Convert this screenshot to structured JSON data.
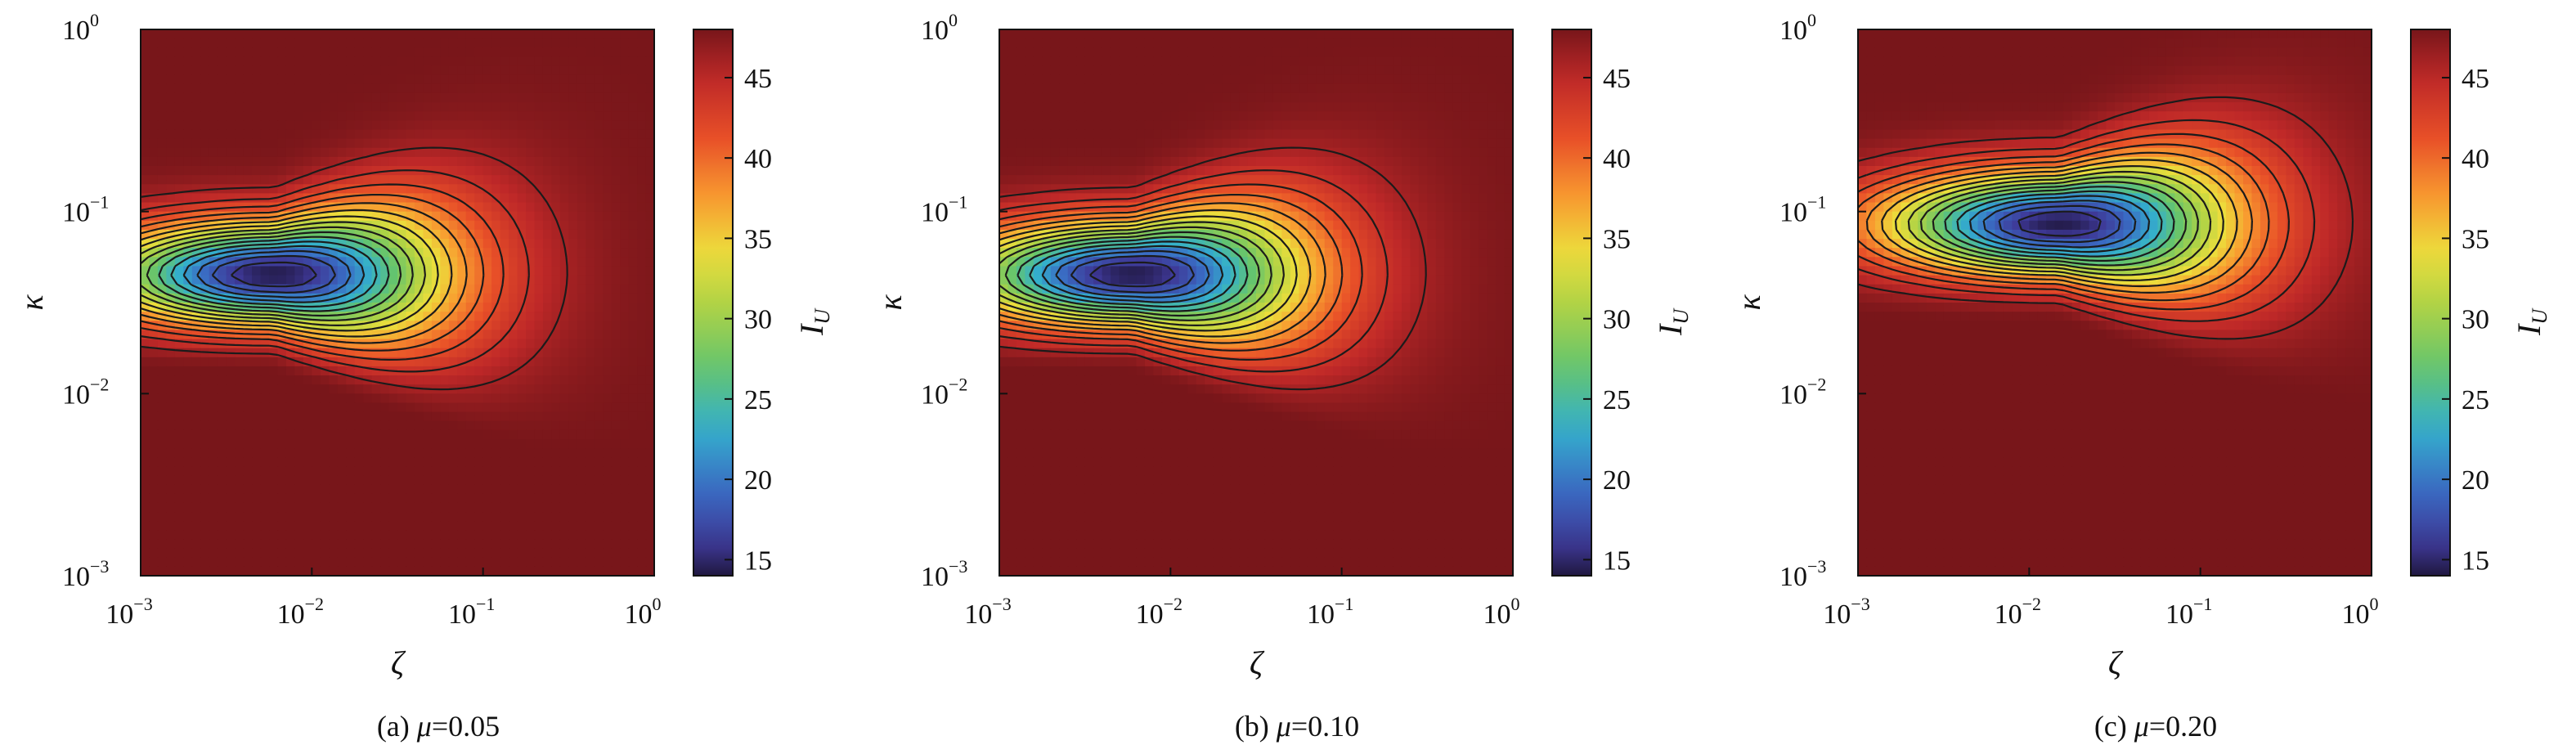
{
  "figure": {
    "panels": [
      {
        "caption_prefix": "(a) ",
        "caption_symbol": "μ",
        "caption_value": "=0.05"
      },
      {
        "caption_prefix": "(b) ",
        "caption_symbol": "μ",
        "caption_value": "=0.10"
      },
      {
        "caption_prefix": "(c) ",
        "caption_symbol": "μ",
        "caption_value": "=0.20"
      }
    ]
  },
  "chart_data": [
    {
      "type": "heatmap",
      "mu": 0.05,
      "xlabel": "ζ",
      "ylabel": "κ",
      "xscale": "log",
      "yscale": "log",
      "xlim": [
        0.001,
        1
      ],
      "ylim": [
        0.001,
        1
      ],
      "x_ticks": [
        {
          "base": "10",
          "exp": "−3"
        },
        {
          "base": "10",
          "exp": "−2"
        },
        {
          "base": "10",
          "exp": "−1"
        },
        {
          "base": "10",
          "exp": "0"
        }
      ],
      "y_ticks": [
        {
          "base": "10",
          "exp": "−3"
        },
        {
          "base": "10",
          "exp": "−2"
        },
        {
          "base": "10",
          "exp": "−1"
        },
        {
          "base": "10",
          "exp": "0"
        }
      ],
      "colorbar": {
        "label": "I",
        "label_sub": "U",
        "range": [
          14,
          48
        ],
        "ticks": [
          "15",
          "20",
          "25",
          "30",
          "35",
          "40",
          "45"
        ],
        "colormap": "spectral"
      },
      "minimum": {
        "zeta": 0.006,
        "kappa": 0.045,
        "value": 14
      },
      "contour_levels": "every 2 units",
      "grid": false
    },
    {
      "type": "heatmap",
      "mu": 0.1,
      "xlabel": "ζ",
      "ylabel": "κ",
      "xscale": "log",
      "yscale": "log",
      "xlim": [
        0.001,
        1
      ],
      "ylim": [
        0.001,
        1
      ],
      "x_ticks": [
        {
          "base": "10",
          "exp": "−3"
        },
        {
          "base": "10",
          "exp": "−2"
        },
        {
          "base": "10",
          "exp": "−1"
        },
        {
          "base": "10",
          "exp": "0"
        }
      ],
      "y_ticks": [
        {
          "base": "10",
          "exp": "−3"
        },
        {
          "base": "10",
          "exp": "−2"
        },
        {
          "base": "10",
          "exp": "−1"
        },
        {
          "base": "10",
          "exp": "0"
        }
      ],
      "colorbar": {
        "label": "I",
        "label_sub": "U",
        "range": [
          14,
          48
        ],
        "ticks": [
          "15",
          "20",
          "25",
          "30",
          "35",
          "40",
          "45"
        ],
        "colormap": "spectral"
      },
      "minimum": {
        "zeta": 0.006,
        "kappa": 0.045,
        "value": 14
      },
      "contour_levels": "every 2 units",
      "grid": false
    },
    {
      "type": "heatmap",
      "mu": 0.2,
      "xlabel": "ζ",
      "ylabel": "κ",
      "xscale": "log",
      "yscale": "log",
      "xlim": [
        0.001,
        1
      ],
      "ylim": [
        0.001,
        1
      ],
      "x_ticks": [
        {
          "base": "10",
          "exp": "−3"
        },
        {
          "base": "10",
          "exp": "−2"
        },
        {
          "base": "10",
          "exp": "−1"
        },
        {
          "base": "10",
          "exp": "0"
        }
      ],
      "y_ticks": [
        {
          "base": "10",
          "exp": "−3"
        },
        {
          "base": "10",
          "exp": "−2"
        },
        {
          "base": "10",
          "exp": "−1"
        },
        {
          "base": "10",
          "exp": "0"
        }
      ],
      "colorbar": {
        "label": "I",
        "label_sub": "U",
        "range": [
          14,
          48
        ],
        "ticks": [
          "15",
          "20",
          "25",
          "30",
          "35",
          "40",
          "45"
        ],
        "colormap": "spectral"
      },
      "minimum": {
        "zeta": 0.015,
        "kappa": 0.085,
        "value": 14
      },
      "contour_levels": "every 2 units",
      "grid": false
    }
  ]
}
